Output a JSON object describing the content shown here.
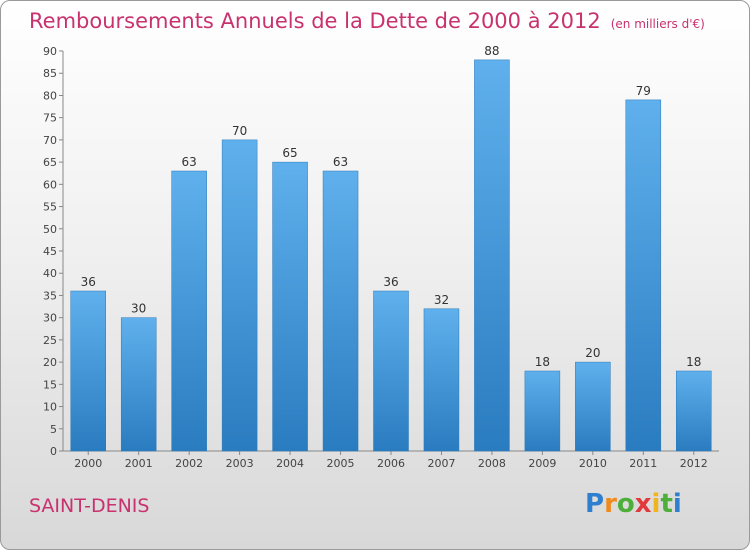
{
  "chart_data": {
    "type": "bar",
    "title": "Remboursements Annuels de la Dette de 2000 à 2012",
    "subtitle": "(en milliers d'€)",
    "categories": [
      "2000",
      "2001",
      "2002",
      "2003",
      "2004",
      "2005",
      "2006",
      "2007",
      "2008",
      "2009",
      "2010",
      "2011",
      "2012"
    ],
    "values": [
      36,
      30,
      63,
      70,
      65,
      63,
      36,
      32,
      88,
      18,
      20,
      79,
      18
    ],
    "ylim": [
      0,
      90
    ],
    "yticks": [
      0,
      5,
      10,
      15,
      20,
      25,
      30,
      35,
      40,
      45,
      50,
      55,
      60,
      65,
      70,
      75,
      80,
      85,
      90
    ],
    "grid": false,
    "bar_color": "#3d93d8",
    "bar_color_light": "#5fb0ec",
    "bar_color_dark": "#2a7cc0"
  },
  "commune": "SAINT-DENIS",
  "logo": {
    "letters": [
      "P",
      "r",
      "o",
      "x",
      "i",
      "t",
      "i"
    ],
    "colors": [
      "#2f7fd0",
      "#f08a1c",
      "#4caf3a",
      "#e23a3a",
      "#f0b41c",
      "#4caf3a",
      "#2f7fd0"
    ]
  }
}
